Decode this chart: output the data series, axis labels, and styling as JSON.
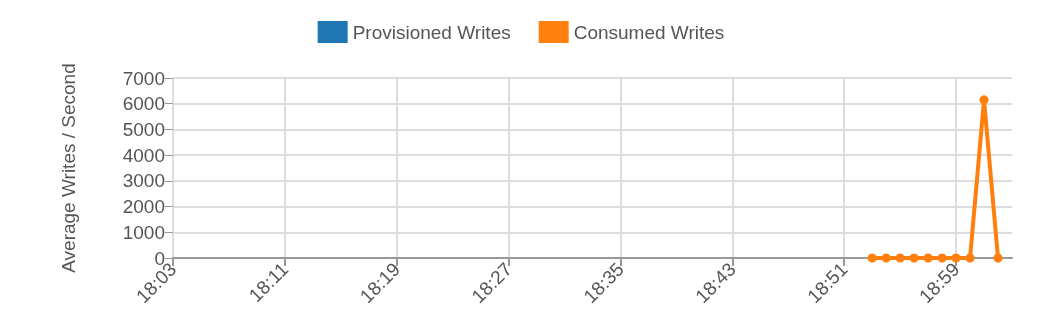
{
  "chart_data": {
    "type": "line",
    "ylabel": "Average Writes / Second",
    "x": [
      18.883333,
      18.9,
      18.916667,
      18.933333,
      18.95,
      18.966667,
      18.983333,
      19.0,
      19.016667,
      19.033333
    ],
    "series": [
      {
        "name": "Provisioned Writes",
        "color": "#1f77b4",
        "values": [
          null,
          null,
          null,
          null,
          null,
          null,
          null,
          null,
          null,
          null
        ]
      },
      {
        "name": "Consumed Writes",
        "color": "#ff7f0e",
        "values": [
          0,
          0,
          0,
          0,
          0,
          0,
          0,
          0,
          6150,
          0
        ]
      }
    ],
    "xlim": [
      18.05,
      19.05
    ],
    "xticks": [
      {
        "value": 18.05,
        "label": "18:03"
      },
      {
        "value": 18.183333,
        "label": "18:11"
      },
      {
        "value": 18.316667,
        "label": "18:19"
      },
      {
        "value": 18.45,
        "label": "18:27"
      },
      {
        "value": 18.583333,
        "label": "18:35"
      },
      {
        "value": 18.716667,
        "label": "18:43"
      },
      {
        "value": 18.85,
        "label": "18:51"
      },
      {
        "value": 18.983333,
        "label": "18:59"
      }
    ],
    "ylim": [
      0,
      7000
    ],
    "yticks": [
      0,
      1000,
      2000,
      3000,
      4000,
      5000,
      6000,
      7000
    ],
    "grid": true,
    "legend": "top",
    "marker": "circle",
    "line_style": "solid"
  }
}
